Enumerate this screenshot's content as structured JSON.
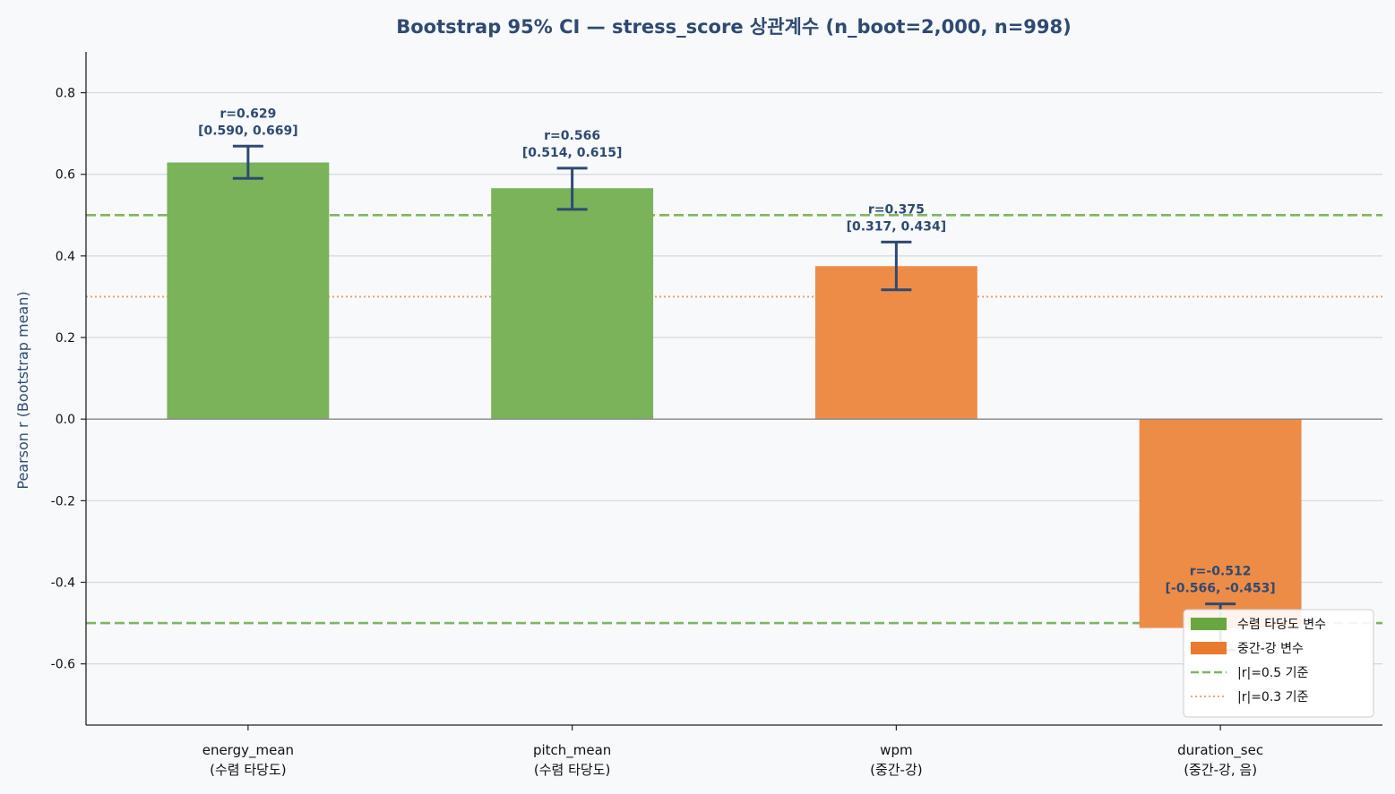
{
  "chart_data": {
    "type": "bar",
    "title": "Bootstrap 95% CI — stress_score 상관계수 (n_boot=2,000, n=998)",
    "xlabel": "",
    "ylabel": "Pearson r (Bootstrap mean)",
    "ylim": [
      -0.75,
      0.9
    ],
    "yticks": [
      -0.6,
      -0.4,
      -0.2,
      0.0,
      0.2,
      0.4,
      0.6,
      0.8
    ],
    "ytick_labels": [
      "-0.6",
      "-0.4",
      "-0.2",
      "0.0",
      "0.2",
      "0.4",
      "0.6",
      "0.8"
    ],
    "grid": "y",
    "categories": [
      {
        "line1": "energy_mean",
        "line2": "(수렴 타당도)"
      },
      {
        "line1": "pitch_mean",
        "line2": "(수렴 타당도)"
      },
      {
        "line1": "wpm",
        "line2": "(중간-강)"
      },
      {
        "line1": "duration_sec",
        "line2": "(중간-강, 음)"
      }
    ],
    "values": [
      0.629,
      0.566,
      0.375,
      -0.512
    ],
    "ci_low": [
      0.59,
      0.514,
      0.317,
      -0.566
    ],
    "ci_high": [
      0.669,
      0.615,
      0.434,
      -0.453
    ],
    "groups": [
      "convergent",
      "convergent",
      "moderate",
      "moderate"
    ],
    "annotations": [
      {
        "r": "r=0.629",
        "ci": "[0.590, 0.669]"
      },
      {
        "r": "r=0.566",
        "ci": "[0.514, 0.615]"
      },
      {
        "r": "r=0.375",
        "ci": "[0.317, 0.434]"
      },
      {
        "r": "r=-0.512",
        "ci": "[-0.566, -0.453]"
      }
    ],
    "reference_lines": [
      {
        "value": 0.5,
        "style": "dashed",
        "color": "#7fb560"
      },
      {
        "value": -0.5,
        "style": "dashed",
        "color": "#7fb560"
      },
      {
        "value": 0.3,
        "style": "dotted",
        "color": "#ee9a5c"
      }
    ],
    "colors": {
      "convergent": "#7ab35a",
      "moderate": "#ed8c47",
      "errorbar": "#2e4a72",
      "grid": "#d6d9dc",
      "zero_line": "#888888"
    },
    "legend": {
      "position": "lower-right",
      "entries": [
        {
          "label": "수렴 타당도 변수",
          "kind": "patch",
          "color": "#6aa63f"
        },
        {
          "label": "중간-강 변수",
          "kind": "patch",
          "color": "#e97a2e"
        },
        {
          "label": "|r|=0.5 기준",
          "kind": "dashed",
          "color": "#7fb560"
        },
        {
          "label": "|r|=0.3 기준",
          "kind": "dotted",
          "color": "#ee9a5c"
        }
      ]
    }
  }
}
